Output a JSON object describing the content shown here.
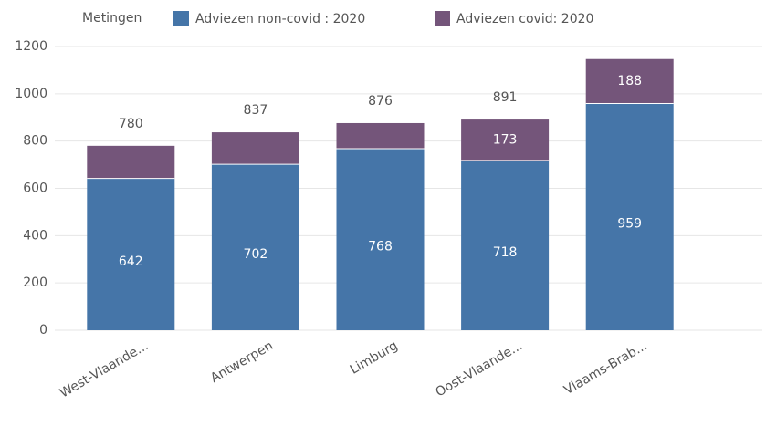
{
  "chart_data": {
    "type": "stacked_bar",
    "legend_title": "Metingen",
    "categories": [
      "West-Vlaande...",
      "Antwerpen",
      "Limburg",
      "Oost-Vlaande...",
      "Vlaams-Brab..."
    ],
    "series": [
      {
        "name": "Adviezen non-covid : 2020",
        "color": "#4575a8",
        "values": [
          642,
          702,
          768,
          718,
          959
        ]
      },
      {
        "name": "Adviezen covid: 2020",
        "color": "#74557a",
        "values": [
          138,
          135,
          108,
          173,
          188
        ],
        "value_labels": [
          null,
          null,
          null,
          "173",
          "188"
        ]
      }
    ],
    "totals": [
      780,
      837,
      876,
      891,
      null
    ],
    "ylim": [
      0,
      1200
    ],
    "yticks": [
      0,
      200,
      400,
      600,
      800,
      1000,
      1200
    ],
    "grid": true,
    "legend": "top"
  }
}
